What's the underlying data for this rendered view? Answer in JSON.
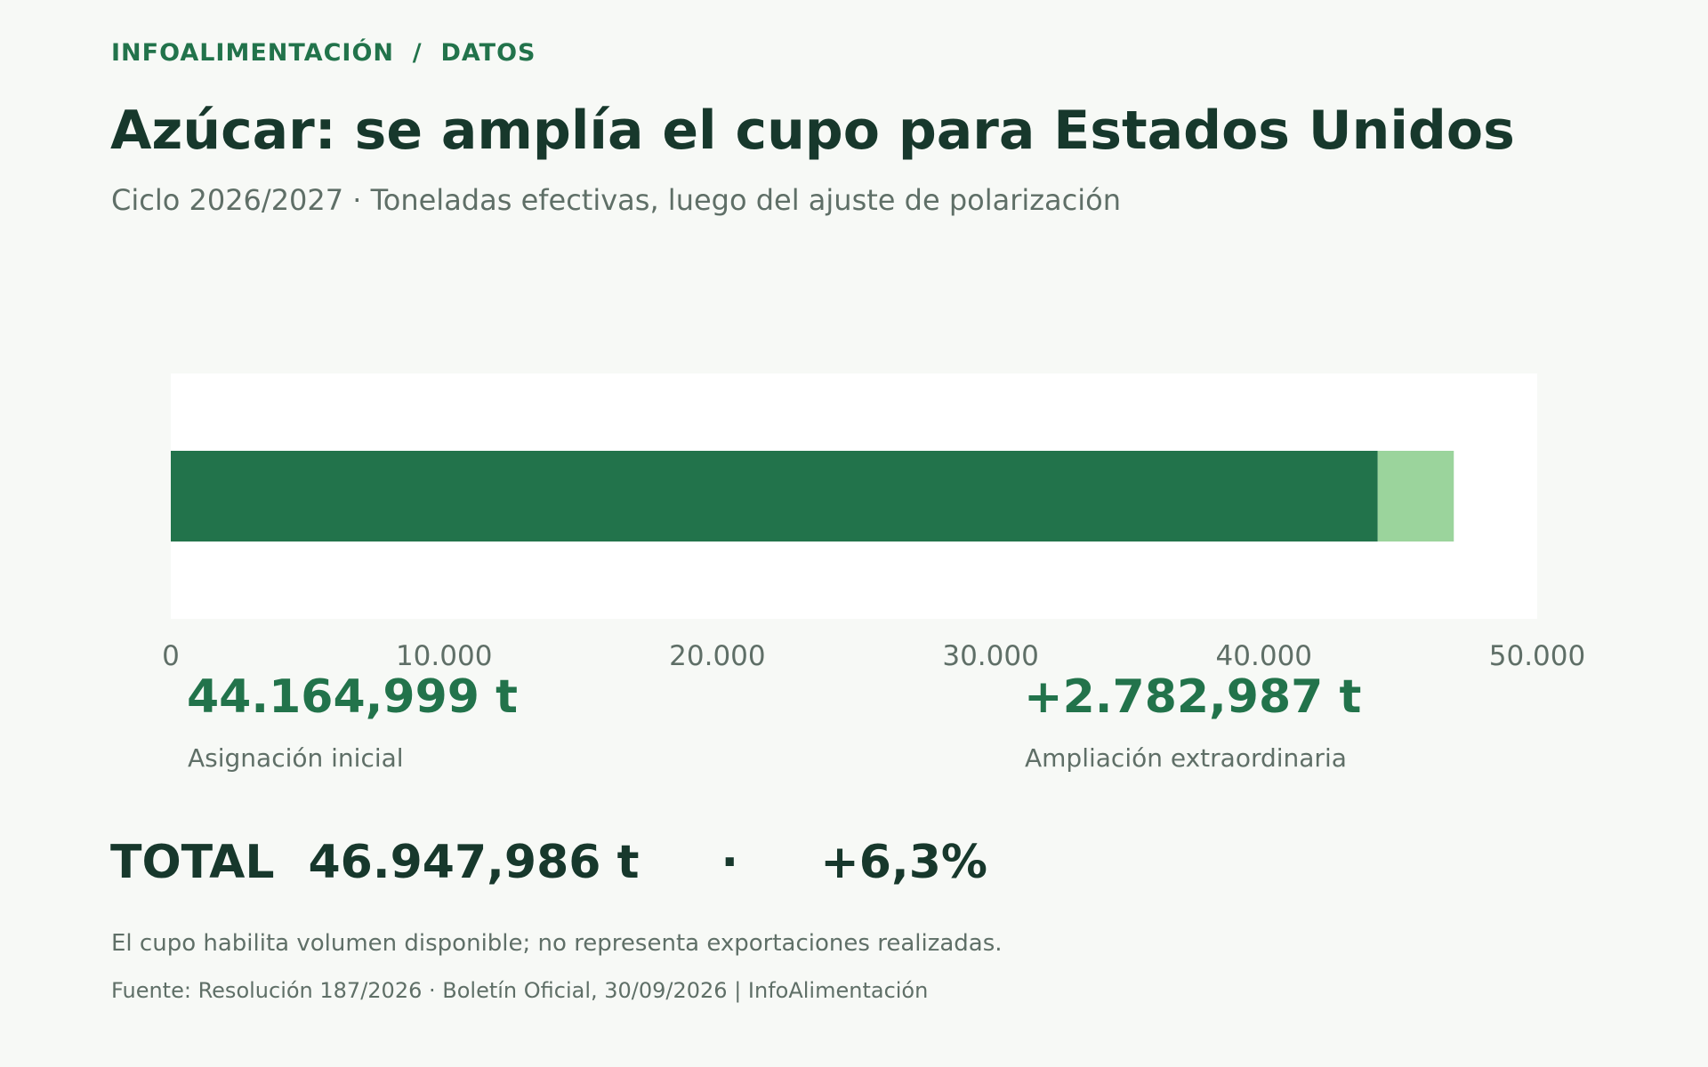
{
  "header": {
    "kicker": "INFOALIMENTACIÓN  /  DATOS",
    "title": "Azúcar: se amplía el cupo para Estados Unidos",
    "subtitle": "Ciclo 2026/2027 · Toneladas efectivas, luego del ajuste de polarización"
  },
  "chart_data": {
    "type": "bar",
    "orientation": "horizontal",
    "stacked": true,
    "series": [
      {
        "values": [
          44164.999
        ],
        "color": "#22734b"
      },
      {
        "values": [
          2782.987
        ],
        "color": "#9bd49c"
      }
    ],
    "xlim": [
      0,
      50000
    ],
    "xticks": [
      0,
      10000,
      20000,
      30000,
      40000,
      50000
    ],
    "xtick_labels": [
      "0",
      "10.000",
      "20.000",
      "30.000",
      "40.000",
      "50.000"
    ],
    "grid": false,
    "plot_background": "#ffffff"
  },
  "stats": {
    "initial_value": "44.164,999 t",
    "initial_label": "Asignación inicial",
    "extra_value": "+2.782,987 t",
    "extra_label": "Ampliación extraordinaria"
  },
  "total": {
    "label": "TOTAL",
    "value": "46.947,986 t",
    "separator": "·",
    "change": "+6,3%"
  },
  "footer": {
    "note": "El cupo habilita volumen disponible; no representa exportaciones realizadas.",
    "source": "Fuente: Resolución 187/2026 · Boletín Oficial, 30/09/2026 | InfoAlimentación"
  }
}
